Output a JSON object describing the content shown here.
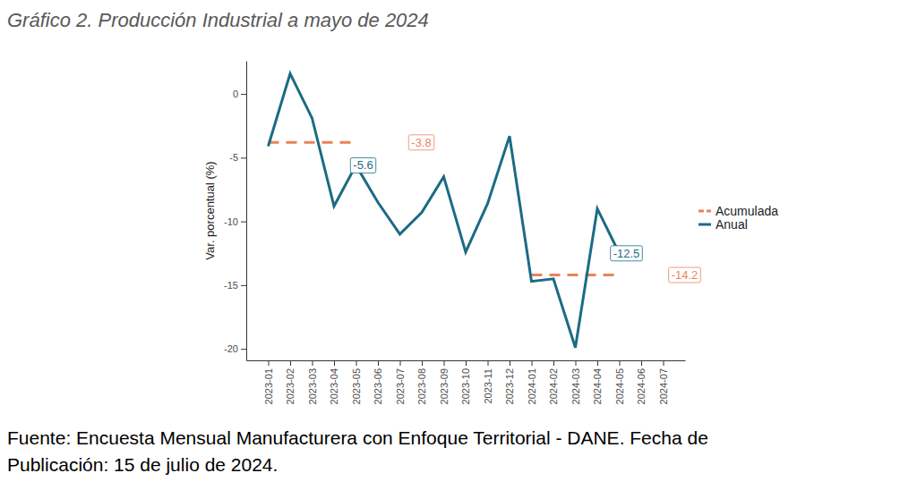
{
  "chart_data": {
    "type": "line",
    "title": "Gráfico 2. Producción Industrial a mayo de 2024",
    "source": [
      "Fuente: Encuesta Mensual Manufacturera con Enfoque Territorial - DANE. Fecha de",
      "Publicación: 15 de julio de 2024."
    ],
    "y_label": "Var. porcentual (%)",
    "categories": [
      "2023-01",
      "2023-02",
      "2023-03",
      "2023-04",
      "2023-05",
      "2023-06",
      "2023-07",
      "2023-08",
      "2023-09",
      "2023-10",
      "2023-11",
      "2023-12",
      "2024-01",
      "2024-02",
      "2024-03",
      "2024-04",
      "2024-05",
      "2024-06",
      "2024-07"
    ],
    "series": [
      {
        "name": "Acumulada",
        "color": "#e8845a",
        "line_style": "dashed",
        "values": [
          -3.8,
          -3.8,
          -3.8,
          -3.8,
          -3.8,
          null,
          null,
          null,
          null,
          null,
          null,
          null,
          -14.2,
          -14.2,
          -14.2,
          -14.2,
          -14.2,
          null,
          null
        ]
      },
      {
        "name": "Anual",
        "color": "#1b6b85",
        "line_style": "solid",
        "values": [
          -4.1,
          1.6,
          -1.9,
          -8.8,
          -5.6,
          -8.5,
          -11.0,
          -9.3,
          -6.5,
          -12.4,
          -8.6,
          -3.3,
          -14.7,
          -14.5,
          -19.9,
          -9.0,
          -12.5,
          null,
          null
        ]
      }
    ],
    "annotations": [
      {
        "text": "-3.8",
        "x": "2023-07",
        "y": -3.8,
        "series": "Acumulada"
      },
      {
        "text": "-5.6",
        "x": "2023-05",
        "y": -5.6,
        "series": "Anual"
      },
      {
        "text": "-12.5",
        "x": "2024-05",
        "y": -12.5,
        "series": "Anual"
      },
      {
        "text": "-14.2",
        "x": "2024-07",
        "y": -14.2,
        "series": "Acumulada"
      }
    ],
    "ylim": [
      -20.9,
      2.6
    ],
    "yticks": [
      -20,
      -15,
      -10,
      -5,
      0
    ],
    "grid": false,
    "legend": "right"
  }
}
